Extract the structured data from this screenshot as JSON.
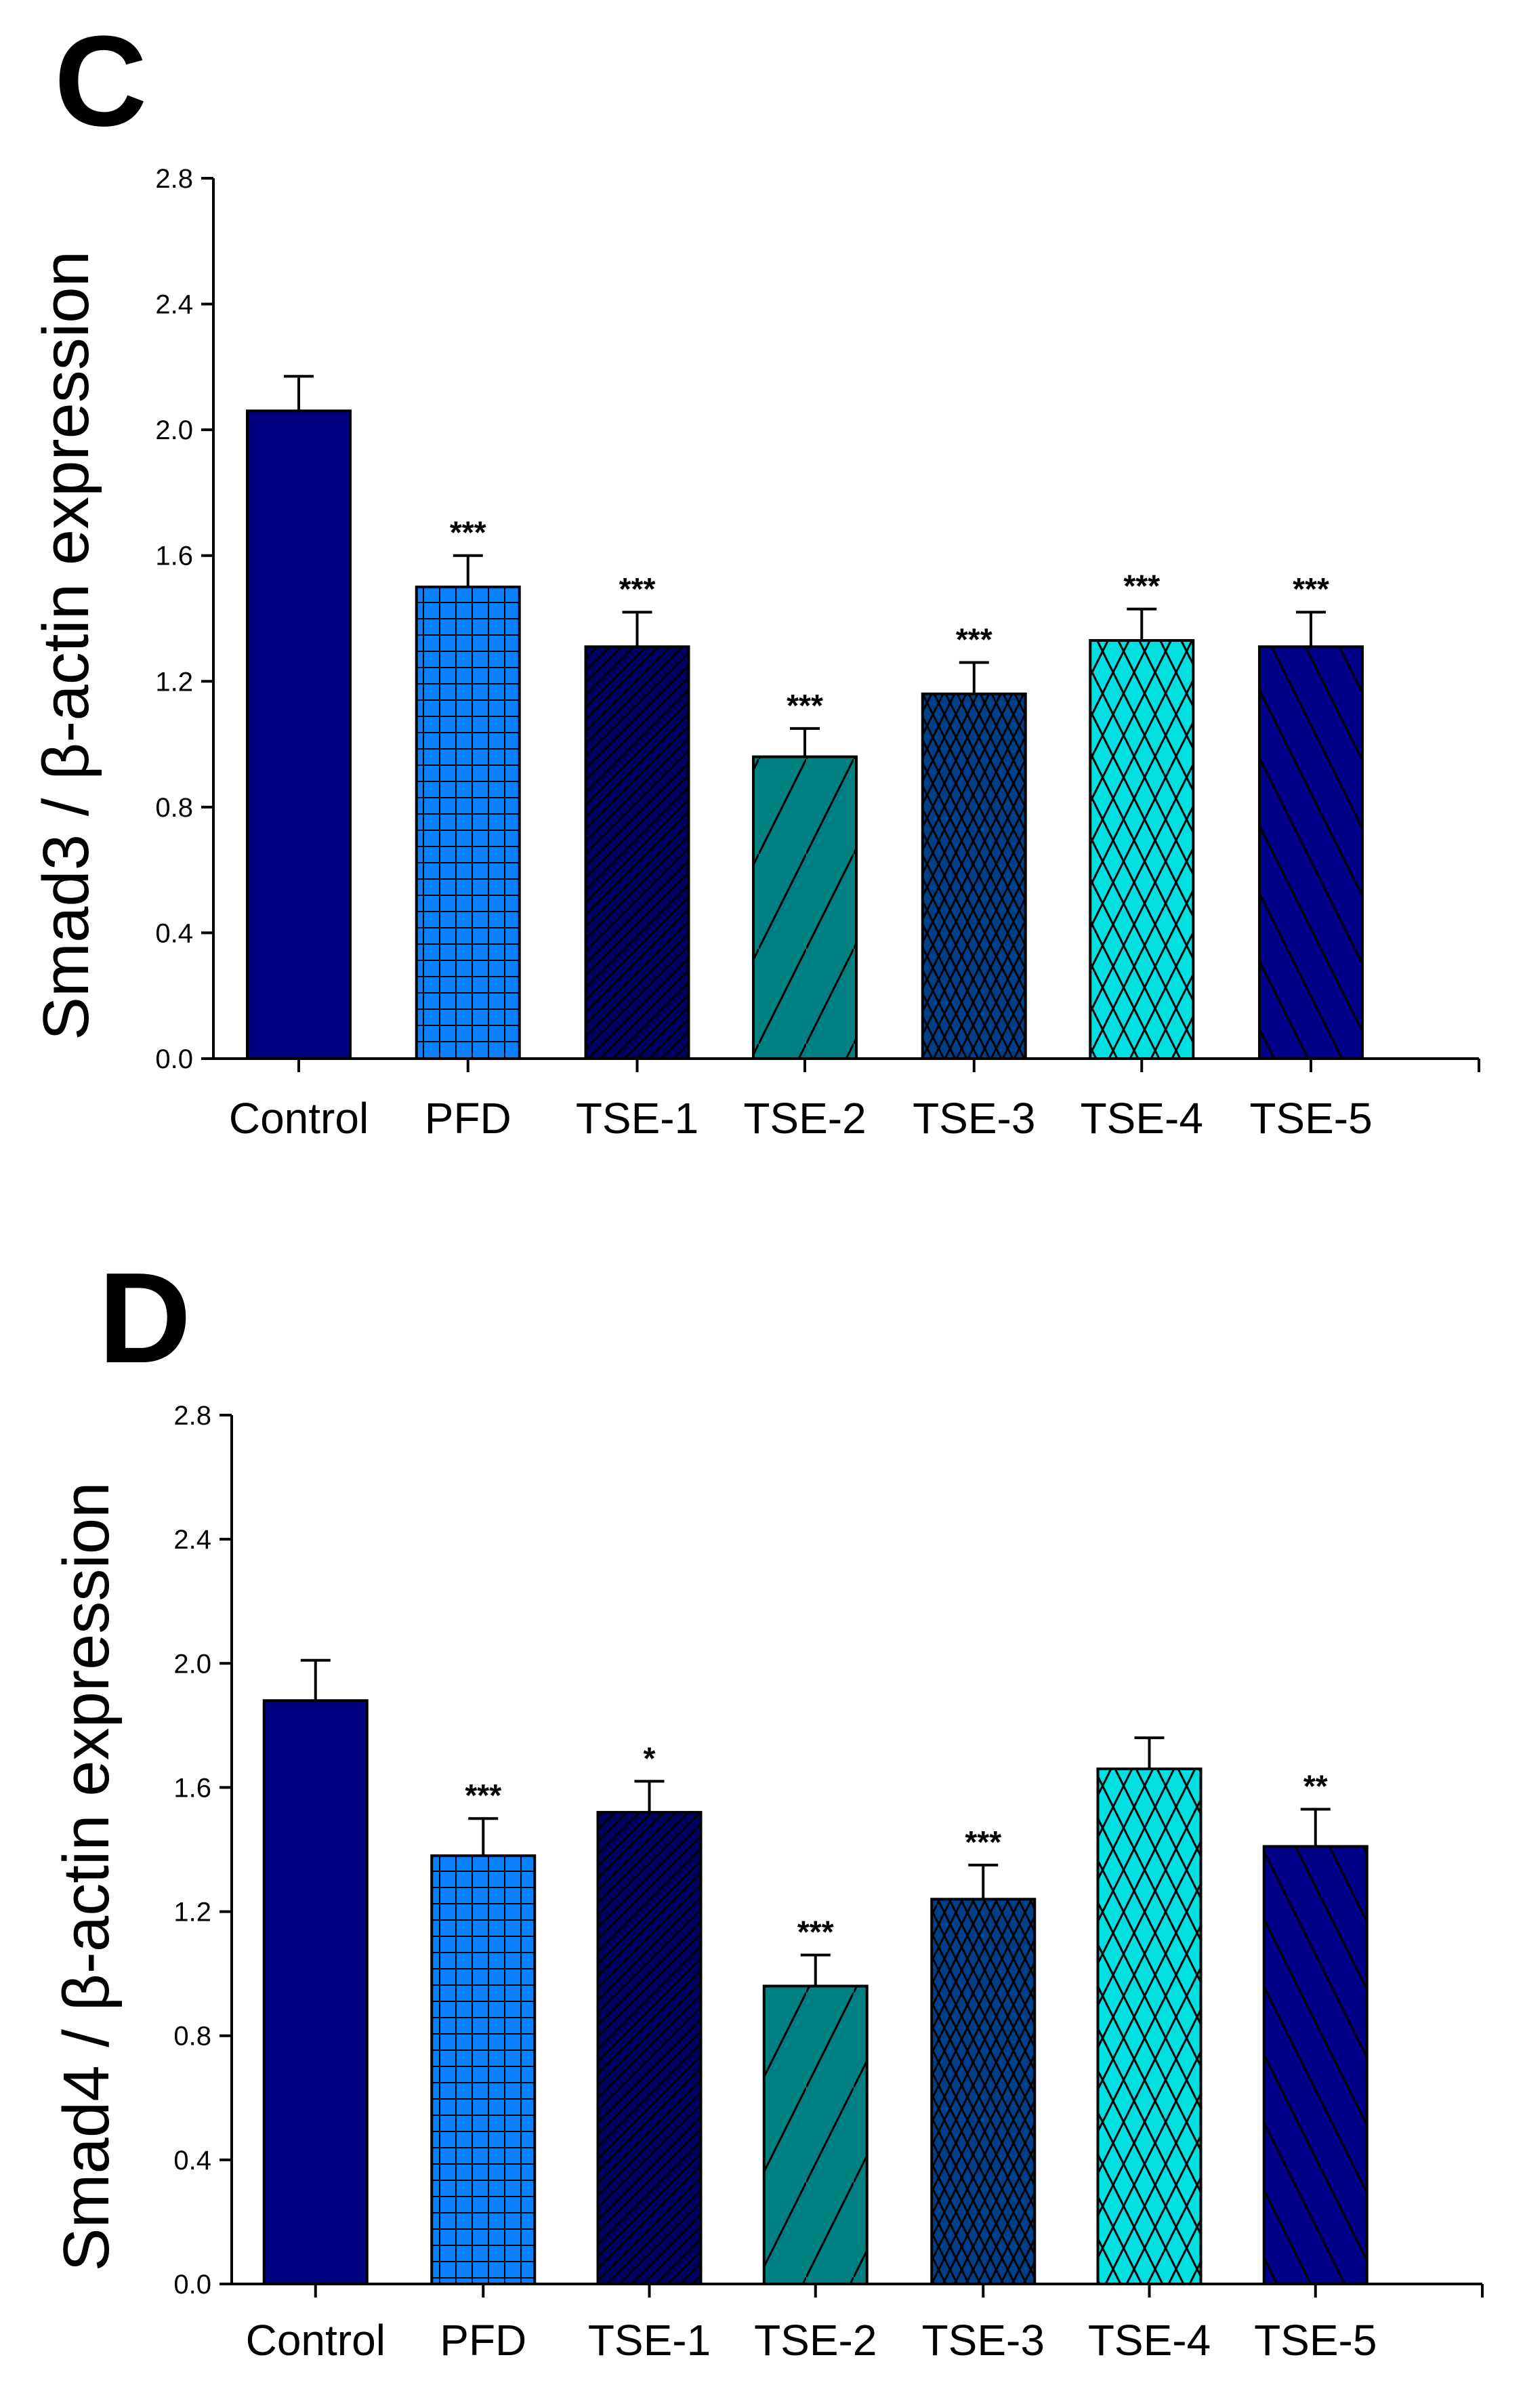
{
  "chart_data": [
    {
      "type": "bar",
      "panel_label": "C",
      "title": "",
      "xlabel": "",
      "ylabel": "Smad3 / β-actin expression",
      "ylim": [
        0,
        2.8
      ],
      "yticks": [
        "0.0",
        "0.4",
        "0.8",
        "1.2",
        "1.6",
        "2.0",
        "2.4",
        "2.8"
      ],
      "categories": [
        "Control",
        "PFD",
        "TSE-1",
        "TSE-2",
        "TSE-3",
        "TSE-4",
        "TSE-5"
      ],
      "values": [
        2.06,
        1.5,
        1.31,
        0.96,
        1.16,
        1.33,
        1.31
      ],
      "errors": [
        0.11,
        0.1,
        0.11,
        0.09,
        0.1,
        0.1,
        0.11
      ],
      "significance": [
        "",
        "***",
        "***",
        "***",
        "***",
        "***",
        "***"
      ],
      "grid": false
    },
    {
      "type": "bar",
      "panel_label": "D",
      "title": "",
      "xlabel": "",
      "ylabel": "Smad4 / β-actin expression",
      "ylim": [
        0,
        2.8
      ],
      "yticks": [
        "0.0",
        "0.4",
        "0.8",
        "1.2",
        "1.6",
        "2.0",
        "2.4",
        "2.8"
      ],
      "categories": [
        "Control",
        "PFD",
        "TSE-1",
        "TSE-2",
        "TSE-3",
        "TSE-4",
        "TSE-5"
      ],
      "values": [
        1.88,
        1.38,
        1.52,
        0.96,
        1.24,
        1.66,
        1.41
      ],
      "errors": [
        0.13,
        0.12,
        0.1,
        0.1,
        0.11,
        0.1,
        0.12
      ],
      "significance": [
        "",
        "***",
        "*",
        "***",
        "***",
        "",
        "**"
      ],
      "grid": false
    }
  ],
  "styles": {
    "bar_colors": [
      "#000080",
      "#0a7fff",
      "#000060",
      "#008080",
      "#004088",
      "#00e0e0",
      "#000088"
    ],
    "patterns": [
      "solid",
      "grid",
      "fine-diag-up",
      "wide-diag-up",
      "crosshatch-dense",
      "crosshatch-wide",
      "diag-down"
    ]
  }
}
